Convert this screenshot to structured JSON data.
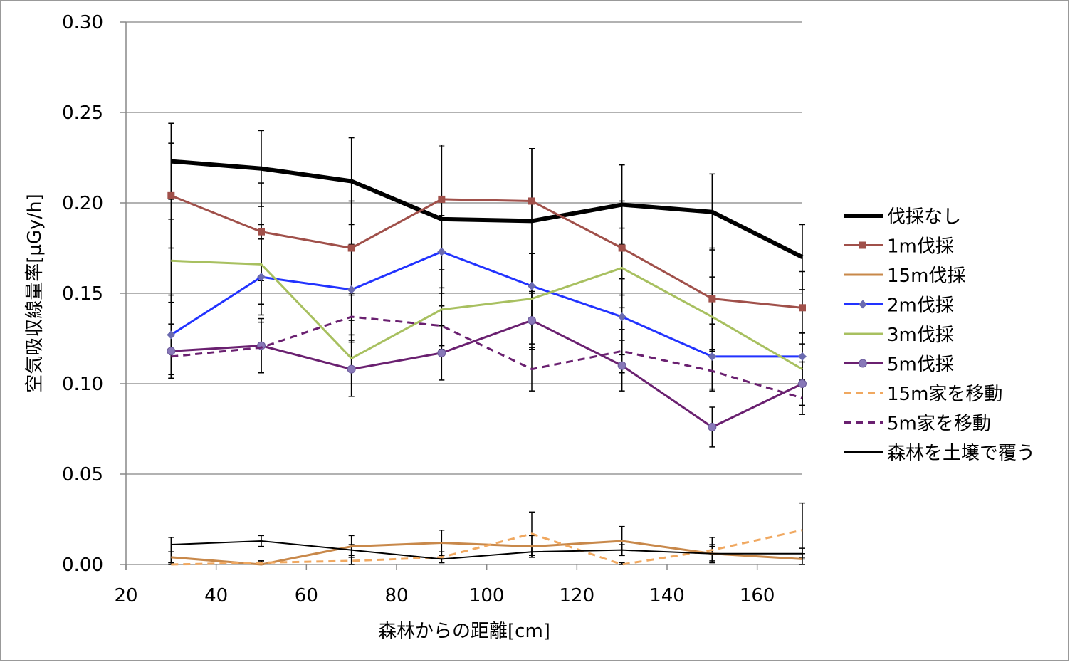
{
  "chart_data": {
    "type": "line",
    "title": "",
    "xlabel": "森林からの距離[cm]",
    "ylabel": "空気吸収線量率[μGy/h]",
    "xlim": [
      20,
      170
    ],
    "ylim": [
      0,
      0.3
    ],
    "xticks": [
      "20",
      "40",
      "60",
      "80",
      "100",
      "120",
      "140",
      "160"
    ],
    "xtick_values": [
      20,
      40,
      60,
      80,
      100,
      120,
      140,
      160
    ],
    "yticks": [
      "0.00",
      "0.05",
      "0.10",
      "0.15",
      "0.20",
      "0.25",
      "0.30"
    ],
    "ytick_values": [
      0,
      0.05,
      0.1,
      0.15,
      0.2,
      0.25,
      0.3
    ],
    "grid": "horizontal",
    "legend_position": "right",
    "x": [
      30,
      50,
      70,
      90,
      110,
      130,
      150,
      170
    ],
    "series": [
      {
        "name": "伐採なし",
        "color": "#000000",
        "width": 6,
        "dash": "",
        "marker": "none",
        "values": [
          0.223,
          0.219,
          0.212,
          0.191,
          0.19,
          0.199,
          0.195,
          0.17
        ],
        "error": [
          0.021,
          0.021,
          0.024,
          0.041,
          0.04,
          0.022,
          0.021,
          0.018
        ]
      },
      {
        "name": "1m伐採",
        "color": "#A0504A",
        "width": 3,
        "dash": "",
        "marker": "square",
        "values": [
          0.204,
          0.184,
          0.175,
          0.202,
          0.201,
          0.175,
          0.147,
          0.142
        ],
        "error": [
          0.029,
          0.027,
          0.026,
          0.029,
          0.029,
          0.026,
          0.028,
          0.02
        ]
      },
      {
        "name": "15m伐採",
        "color": "#C8884A",
        "width": 3,
        "dash": "",
        "marker": "none",
        "values": [
          0.004,
          0.0,
          0.01,
          0.012,
          0.01,
          0.013,
          0.006,
          0.003
        ],
        "error": [
          0.003,
          0.002,
          0.006,
          0.007,
          0.006,
          0.008,
          0.005,
          0.003
        ]
      },
      {
        "name": "2m伐採",
        "color": "#2233FF",
        "width": 3,
        "dash": "",
        "marker": "diamond",
        "values": [
          0.127,
          0.159,
          0.152,
          0.173,
          0.154,
          0.137,
          0.115,
          0.115
        ],
        "error": [
          0.022,
          0.021,
          0.025,
          0.02,
          0.018,
          0.021,
          0.018,
          0.013
        ]
      },
      {
        "name": "3m伐採",
        "color": "#A8C060",
        "width": 3,
        "dash": "",
        "marker": "none",
        "values": [
          0.168,
          0.166,
          0.114,
          0.141,
          0.147,
          0.164,
          0.137,
          0.108
        ],
        "error": [
          0.023,
          0.022,
          0.021,
          0.022,
          0.025,
          0.022,
          0.022,
          0.02
        ]
      },
      {
        "name": "5m伐採",
        "color": "#6A2070",
        "width": 3,
        "dash": "",
        "marker": "circle",
        "values": [
          0.118,
          0.121,
          0.108,
          0.117,
          0.135,
          0.11,
          0.076,
          0.1
        ],
        "error": [
          0.015,
          0.015,
          0.015,
          0.015,
          0.016,
          0.014,
          0.011,
          0.012
        ]
      },
      {
        "name": "15m家を移動",
        "color": "#F0A860",
        "width": 3,
        "dash": "10,7",
        "marker": "none",
        "values": [
          0.0,
          0.001,
          0.002,
          0.004,
          0.017,
          0.0,
          0.008,
          0.019
        ],
        "error": [
          0.001,
          0.001,
          0.002,
          0.003,
          0.012,
          0.001,
          0.007,
          0.015
        ]
      },
      {
        "name": "5m家を移動",
        "color": "#6A2070",
        "width": 3,
        "dash": "10,7",
        "marker": "none",
        "values": [
          0.115,
          0.12,
          0.137,
          0.132,
          0.108,
          0.118,
          0.107,
          0.092
        ],
        "error": [
          0.012,
          0.014,
          0.013,
          0.011,
          0.012,
          0.012,
          0.011,
          0.009
        ]
      },
      {
        "name": "森林を土壌で覆う",
        "color": "#000000",
        "width": 2,
        "dash": "",
        "marker": "none",
        "values": [
          0.011,
          0.013,
          0.008,
          0.003,
          0.007,
          0.008,
          0.006,
          0.006
        ],
        "error": [
          0.004,
          0.003,
          0.003,
          0.002,
          0.003,
          0.003,
          0.004,
          0.003
        ]
      }
    ]
  }
}
